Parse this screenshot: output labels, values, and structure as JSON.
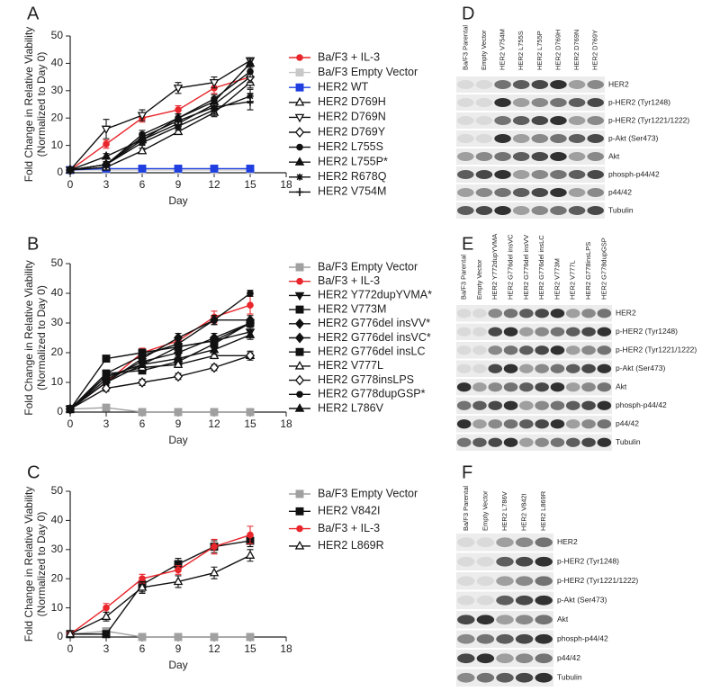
{
  "chart_data": [
    {
      "type": "line",
      "label": "A",
      "xlabel": "Day",
      "ylabel": [
        "Fold Change in Relative Viability",
        "(Normalized to Day 0)"
      ],
      "x": [
        0,
        3,
        6,
        9,
        12,
        15
      ],
      "xlim": [
        0,
        18
      ],
      "xticks": [
        0,
        3,
        6,
        9,
        12,
        15,
        18
      ],
      "ylim": [
        0,
        50
      ],
      "yticks": [
        0,
        10,
        20,
        30,
        40,
        50
      ],
      "series": [
        {
          "name": "Ba/F3 + IL-3",
          "color": "#e8262b",
          "marker": "circle",
          "values": [
            1,
            10.5,
            20,
            23,
            31,
            35
          ],
          "errors": [
            0,
            1.5,
            1.5,
            1.5,
            2,
            2.5
          ]
        },
        {
          "name": "Ba/F3 Empty Vector",
          "color": "#c8c8c8",
          "marker": "square",
          "values": [
            1,
            1,
            1,
            1,
            1,
            1
          ],
          "errors": [
            0,
            0,
            0,
            0,
            0,
            0
          ]
        },
        {
          "name": "HER2 WT",
          "color": "#1f3fe0",
          "marker": "square",
          "values": [
            1,
            1.5,
            1.5,
            1.5,
            1.5,
            1.5
          ],
          "errors": [
            0,
            0,
            0,
            0,
            0,
            0
          ]
        },
        {
          "name": "HER2 D769H",
          "color": "#111111",
          "marker": "triangle-open",
          "values": [
            1,
            2,
            8,
            15,
            22,
            33
          ],
          "errors": [
            0,
            0.5,
            1,
            1,
            1.5,
            2
          ]
        },
        {
          "name": "HER2 D769N",
          "color": "#111111",
          "marker": "triangle-down-open",
          "values": [
            1,
            16,
            21,
            31,
            33,
            41
          ],
          "errors": [
            0,
            3.5,
            2,
            2,
            2,
            1
          ]
        },
        {
          "name": "HER2 D769Y",
          "color": "#111111",
          "marker": "diamond-open",
          "values": [
            1,
            3,
            12,
            18,
            25,
            35
          ],
          "errors": [
            0,
            1,
            1.5,
            1.5,
            1.5,
            2
          ]
        },
        {
          "name": "HER2 L755S",
          "color": "#111111",
          "marker": "circle",
          "values": [
            1,
            3,
            14,
            20,
            27,
            37
          ],
          "errors": [
            0,
            1,
            1.5,
            1.5,
            1.5,
            2
          ]
        },
        {
          "name": "HER2 L755P*",
          "color": "#111111",
          "marker": "triangle",
          "values": [
            1,
            6,
            12,
            20,
            26,
            40
          ],
          "errors": [
            0,
            1,
            1.5,
            1.5,
            1.5,
            1.5
          ]
        },
        {
          "name": "HER2 R678Q",
          "color": "#111111",
          "marker": "star",
          "values": [
            1,
            3,
            11,
            17,
            23,
            28
          ],
          "errors": [
            0,
            1,
            1,
            1.5,
            1.5,
            2.5
          ]
        },
        {
          "name": "HER2 V754M",
          "color": "#111111",
          "marker": "plus",
          "values": [
            1,
            3,
            13,
            19,
            24,
            26
          ],
          "errors": [
            0,
            1,
            1.5,
            1.5,
            2,
            3
          ]
        }
      ]
    },
    {
      "type": "line",
      "label": "B",
      "xlabel": "Day",
      "ylabel": [
        "Fold Change in Relative Viability",
        "(Normalized to Day 0)"
      ],
      "x": [
        0,
        3,
        6,
        9,
        12,
        15
      ],
      "xlim": [
        0,
        18
      ],
      "xticks": [
        0,
        3,
        6,
        9,
        12,
        15,
        18
      ],
      "ylim": [
        0,
        50
      ],
      "yticks": [
        0,
        10,
        20,
        30,
        40,
        50
      ],
      "series": [
        {
          "name": "Ba/F3 Empty Vector",
          "color": "#a0a0a0",
          "marker": "square",
          "values": [
            1,
            1.5,
            0,
            0,
            0,
            0
          ],
          "errors": [
            0,
            0,
            0,
            0,
            0,
            0
          ]
        },
        {
          "name": "Ba/F3 + IL-3",
          "color": "#e8262b",
          "marker": "circle",
          "values": [
            1,
            10,
            20,
            24,
            32,
            36
          ],
          "errors": [
            0,
            1.5,
            1.5,
            1.5,
            2,
            3
          ]
        },
        {
          "name": "HER2 Y772dupYVMA*",
          "color": "#111111",
          "marker": "triangle-down",
          "values": [
            1,
            10,
            16,
            22,
            24,
            27
          ],
          "errors": [
            0,
            1,
            1,
            1.5,
            1.5,
            1.5
          ]
        },
        {
          "name": "HER2 V773M",
          "color": "#111111",
          "marker": "square",
          "values": [
            1,
            18,
            20,
            22,
            24,
            30
          ],
          "errors": [
            0,
            1,
            1,
            1.5,
            1.5,
            1.5
          ]
        },
        {
          "name": "HER2 G776del insVV*",
          "color": "#111111",
          "marker": "diamond",
          "values": [
            1,
            10,
            18,
            25,
            31,
            31
          ],
          "errors": [
            0,
            1,
            1,
            1.5,
            1.5,
            1.5
          ]
        },
        {
          "name": "HER2 G776del insVC*",
          "color": "#111111",
          "marker": "diamond",
          "values": [
            1,
            11,
            17,
            20,
            25,
            30
          ],
          "errors": [
            0,
            1,
            1,
            1.5,
            1.5,
            1.5
          ]
        },
        {
          "name": "HER2 G776del insLC",
          "color": "#111111",
          "marker": "square",
          "values": [
            1,
            13,
            14,
            17,
            23,
            30
          ],
          "errors": [
            0,
            1,
            1,
            1.5,
            1.5,
            1.5
          ]
        },
        {
          "name": "HER2 V777L",
          "color": "#111111",
          "marker": "triangle-open",
          "values": [
            1,
            12,
            15,
            16,
            19,
            19
          ],
          "errors": [
            0,
            1,
            1,
            1,
            1,
            1.5
          ]
        },
        {
          "name": "HER2 G778insLPS",
          "color": "#111111",
          "marker": "diamond-open",
          "values": [
            1,
            8,
            10,
            12,
            15,
            19
          ],
          "errors": [
            0,
            1,
            1,
            1,
            1,
            1
          ]
        },
        {
          "name": "HER2 G778dupGSP*",
          "color": "#111111",
          "marker": "circle",
          "values": [
            1,
            13,
            19,
            23,
            31,
            40
          ],
          "errors": [
            0,
            1,
            1,
            1.5,
            1.5,
            1
          ]
        },
        {
          "name": "HER2 L786V",
          "color": "#111111",
          "marker": "triangle",
          "values": [
            1,
            12,
            16,
            18,
            21,
            26
          ],
          "errors": [
            0,
            1,
            1,
            1,
            1.5,
            1.5
          ]
        }
      ]
    },
    {
      "type": "line",
      "label": "C",
      "xlabel": "Day",
      "ylabel": [
        "Fold Change in Relative Viability",
        "(Normalized to Day 0)"
      ],
      "x": [
        0,
        3,
        6,
        9,
        12,
        15
      ],
      "xlim": [
        0,
        18
      ],
      "xticks": [
        0,
        3,
        6,
        9,
        12,
        15,
        18
      ],
      "ylim": [
        0,
        50
      ],
      "yticks": [
        0,
        10,
        20,
        30,
        40,
        50
      ],
      "series": [
        {
          "name": "Ba/F3 Empty Vector",
          "color": "#a0a0a0",
          "marker": "square",
          "values": [
            1,
            2,
            0,
            0,
            0,
            0
          ],
          "errors": [
            0,
            0,
            0,
            0,
            0,
            0
          ]
        },
        {
          "name": "HER2 V842I",
          "color": "#111111",
          "marker": "square",
          "values": [
            1,
            1,
            18,
            25,
            31,
            33
          ],
          "errors": [
            0,
            0,
            2.5,
            2,
            2,
            2
          ]
        },
        {
          "name": "Ba/F3 + IL-3",
          "color": "#e8262b",
          "marker": "circle",
          "values": [
            1,
            10,
            20,
            23,
            31,
            35
          ],
          "errors": [
            0,
            1.5,
            1.5,
            1.5,
            2.5,
            3
          ]
        },
        {
          "name": "HER2 L869R",
          "color": "#111111",
          "marker": "triangle-open",
          "values": [
            1,
            7,
            17,
            19,
            22,
            28
          ],
          "errors": [
            0,
            1.5,
            2,
            2,
            2,
            2
          ]
        }
      ]
    }
  ],
  "blots": [
    {
      "label": "D",
      "lanes": [
        "Ba/F3 Parental",
        "Empty Vector",
        "HER2 V754M",
        "HER2 L755S",
        "HER2 L755P",
        "HER2 D769H",
        "HER2 D769N",
        "HER2 D769Y"
      ],
      "bands": [
        "HER2",
        "p-HER2 (Tyr1248)",
        "p-HER2 (Tyr1221/1222)",
        "p-Akt (Ser473)",
        "Akt",
        "phosph-p44/42",
        "p44/42",
        "Tubulin"
      ]
    },
    {
      "label": "E",
      "lanes": [
        "Ba/F3 Parental",
        "Empty Vector",
        "HER2 Y772dupYVMA",
        "HER2 G776del insVC",
        "HER2 G776del insVV",
        "HER2 G776del insLC",
        "HER2 V773M",
        "HER2 V777L",
        "HER2 G778insLPS",
        "HER2 G778dupGSP"
      ],
      "bands": [
        "HER2",
        "p-HER2 (Tyr1248)",
        "p-HER2 (Tyr1221/1222)",
        "p-Akt (Ser473)",
        "Akt",
        "phosph-p44/42",
        "p44/42",
        "Tubulin"
      ]
    },
    {
      "label": "F",
      "lanes": [
        "Ba/F3 Parental",
        "Empty Vector",
        "HER2 L786V",
        "HER2 V842I",
        "HER2 L869R"
      ],
      "bands": [
        "HER2",
        "p-HER2 (Tyr1248)",
        "p-HER2 (Tyr1221/1222)",
        "p-Akt (Ser473)",
        "Akt",
        "phosph-p44/42",
        "p44/42",
        "Tubulin"
      ]
    }
  ]
}
